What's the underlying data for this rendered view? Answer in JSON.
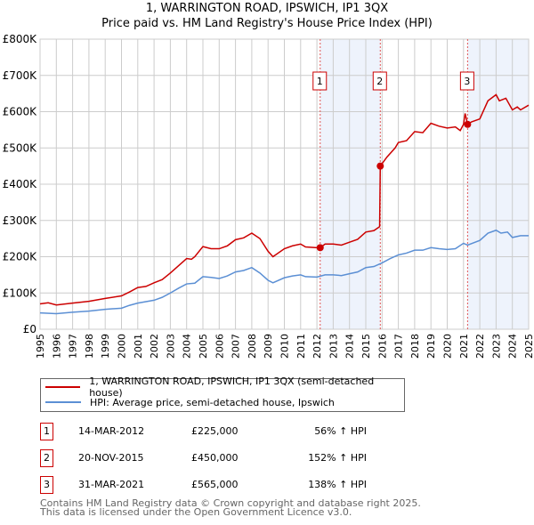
{
  "chart_data": {
    "type": "line",
    "title": "1, WARRINGTON ROAD, IPSWICH, IP1 3QX",
    "subtitle": "Price paid vs. HM Land Registry's House Price Index (HPI)",
    "xlim": [
      1995,
      2025
    ],
    "ylim": [
      0,
      800000
    ],
    "y_ticks": [
      {
        "v": 0,
        "label": "£0"
      },
      {
        "v": 100000,
        "label": "£100K"
      },
      {
        "v": 200000,
        "label": "£200K"
      },
      {
        "v": 300000,
        "label": "£300K"
      },
      {
        "v": 400000,
        "label": "£400K"
      },
      {
        "v": 500000,
        "label": "£500K"
      },
      {
        "v": 600000,
        "label": "£600K"
      },
      {
        "v": 700000,
        "label": "£700K"
      },
      {
        "v": 800000,
        "label": "£800K"
      }
    ],
    "x_ticks": [
      "1995",
      "1996",
      "1997",
      "1998",
      "1999",
      "2000",
      "2001",
      "2002",
      "2003",
      "2004",
      "2005",
      "2006",
      "2007",
      "2008",
      "2009",
      "2010",
      "2011",
      "2012",
      "2013",
      "2014",
      "2015",
      "2016",
      "2017",
      "2018",
      "2019",
      "2020",
      "2021",
      "2022",
      "2023",
      "2024",
      "2025"
    ],
    "grid": true,
    "shaded": [
      [
        2012.2,
        2015.89
      ],
      [
        2021.25,
        2025
      ]
    ],
    "series": [
      {
        "name": "1, WARRINGTON ROAD, IPSWICH, IP1 3QX (semi-detached house)",
        "color": "#cc0000",
        "x": [
          1995,
          1995.5,
          1996,
          1997,
          1998,
          1999,
          2000,
          2000.5,
          2001,
          2001.5,
          2002,
          2002.5,
          2003,
          2003.5,
          2004,
          2004.3,
          2004.5,
          2005,
          2005.5,
          2006,
          2006.5,
          2007,
          2007.5,
          2008,
          2008.5,
          2009,
          2009.3,
          2010,
          2010.5,
          2011,
          2011.3,
          2012,
          2012.2,
          2012.5,
          2013,
          2013.5,
          2014,
          2014.5,
          2015,
          2015.5,
          2015.85,
          2015.89,
          2016.3,
          2016.8,
          2017,
          2017.5,
          2018,
          2018.5,
          2019,
          2019.5,
          2020,
          2020.5,
          2020.8,
          2021,
          2021.1,
          2021.25,
          2021.5,
          2022,
          2022.5,
          2023,
          2023.2,
          2023.6,
          2024,
          2024.3,
          2024.5,
          2025
        ],
        "y": [
          70000,
          73000,
          67000,
          72000,
          77000,
          85000,
          92000,
          103000,
          115000,
          118000,
          128000,
          137000,
          155000,
          175000,
          195000,
          193000,
          200000,
          228000,
          222000,
          222000,
          230000,
          247000,
          252000,
          265000,
          250000,
          215000,
          200000,
          222000,
          230000,
          235000,
          227000,
          225000,
          225000,
          235000,
          235000,
          232000,
          240000,
          248000,
          268000,
          272000,
          283000,
          450000,
          475000,
          500000,
          515000,
          520000,
          545000,
          542000,
          568000,
          560000,
          555000,
          558000,
          548000,
          565000,
          595000,
          565000,
          572000,
          580000,
          630000,
          647000,
          630000,
          637000,
          605000,
          613000,
          605000,
          618000
        ]
      },
      {
        "name": "HPI: Average price, semi-detached house, Ipswich",
        "color": "#5b8fd4",
        "x": [
          1995,
          1996,
          1997,
          1998,
          1999,
          2000,
          2000.5,
          2001,
          2002,
          2002.5,
          2003,
          2003.5,
          2004,
          2004.5,
          2005,
          2005.5,
          2006,
          2006.5,
          2007,
          2007.5,
          2008,
          2008.5,
          2009,
          2009.3,
          2010,
          2010.5,
          2011,
          2011.3,
          2012,
          2012.5,
          2013,
          2013.5,
          2014,
          2014.5,
          2015,
          2015.5,
          2016,
          2016.5,
          2017,
          2017.5,
          2018,
          2018.5,
          2019,
          2019.5,
          2020,
          2020.5,
          2021,
          2021.25,
          2022,
          2022.5,
          2023,
          2023.3,
          2023.7,
          2024,
          2024.5,
          2025
        ],
        "y": [
          45000,
          43000,
          47000,
          50000,
          55000,
          58000,
          66000,
          72000,
          80000,
          88000,
          100000,
          113000,
          125000,
          127000,
          145000,
          143000,
          140000,
          147000,
          158000,
          162000,
          170000,
          155000,
          135000,
          128000,
          142000,
          147000,
          150000,
          145000,
          144000,
          150000,
          150000,
          148000,
          153000,
          158000,
          170000,
          173000,
          183000,
          195000,
          205000,
          210000,
          218000,
          218000,
          225000,
          222000,
          220000,
          222000,
          237000,
          232000,
          245000,
          265000,
          273000,
          265000,
          268000,
          253000,
          258000,
          258000
        ]
      }
    ],
    "sales": [
      {
        "n": "1",
        "x": 2012.2,
        "y": 225000,
        "date": "14-MAR-2012",
        "price": "£225,000",
        "hpi": "56% ↑ HPI"
      },
      {
        "n": "2",
        "x": 2015.89,
        "y": 450000,
        "date": "20-NOV-2015",
        "price": "£450,000",
        "hpi": "152% ↑ HPI"
      },
      {
        "n": "3",
        "x": 2021.25,
        "y": 565000,
        "date": "31-MAR-2021",
        "price": "£565,000",
        "hpi": "138% ↑ HPI"
      }
    ],
    "legend_placement": "below"
  },
  "footer": {
    "line1": "Contains HM Land Registry data © Crown copyright and database right 2025.",
    "line2": "This data is licensed under the Open Government Licence v3.0."
  }
}
